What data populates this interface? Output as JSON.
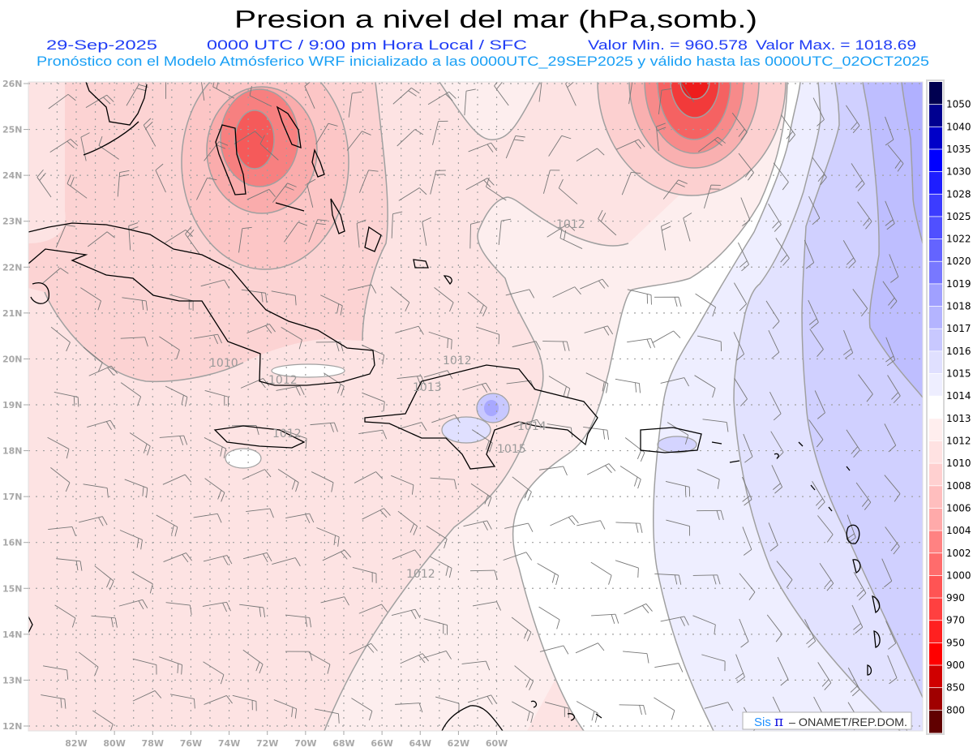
{
  "header": {
    "title": "Presion a nivel del mar (hPa,somb.)",
    "date": "29-Sep-2025",
    "time": "0000 UTC / 9:00 pm Hora Local / SFC",
    "min": "Valor Min. = 960.578",
    "max": "Valor Max. = 1018.69",
    "subtitle": "Pronóstico con el Modelo Atmósferico WRF inicializado a las 0000UTC_29SEP2025 y válido hasta las  0000UTC_02OCT2025"
  },
  "colors": {
    "title": "#000000",
    "line2": "#1f3cf5",
    "subtitle": "#1aa0f5",
    "grid": "#a0a0a0",
    "coast": "#000000"
  },
  "axes": {
    "lat_labels": [
      "26N",
      "25N",
      "24N",
      "23N",
      "22N",
      "21N",
      "20N",
      "19N",
      "18N",
      "17N",
      "16N",
      "15N",
      "14N",
      "13N",
      "12N"
    ],
    "lon_labels": [
      "82W",
      "80W",
      "78W",
      "76W",
      "74W",
      "72W",
      "70W",
      "68W",
      "66W",
      "64W",
      "62W",
      "60W"
    ]
  },
  "colorbar": {
    "labels": [
      "1050",
      "1040",
      "1035",
      "1030",
      "1028",
      "1025",
      "1022",
      "1020",
      "1019",
      "1018",
      "1017",
      "1016",
      "1015",
      "1014",
      "1013",
      "1012",
      "1010",
      "1008",
      "1006",
      "1004",
      "1002",
      "1000",
      "990",
      "970",
      "950",
      "900",
      "850",
      "800"
    ],
    "colors": [
      "#000050",
      "#000090",
      "#0000c8",
      "#0000ff",
      "#1e1eff",
      "#3c3cff",
      "#5050ff",
      "#6464ff",
      "#7878ff",
      "#a0a0ff",
      "#b4b4ff",
      "#c8c8ff",
      "#e0e0ff",
      "#eeeeff",
      "#ffffff",
      "#ffeeee",
      "#ffe2e2",
      "#ffd0d0",
      "#ffbebe",
      "#ffaaaa",
      "#ff8282",
      "#ff6c6c",
      "#ff5454",
      "#ff4040",
      "#ff2020",
      "#ff0000",
      "#d00000",
      "#a00000",
      "#600000"
    ]
  },
  "contour_labels": [
    "1012",
    "1010",
    "1012",
    "1012",
    "1013",
    "1012",
    "1014",
    "1015",
    "1012"
  ],
  "credit": {
    "logo_sis": "Sis",
    "logo_pi": "π",
    "text": "– ONAMET/REP.DOM."
  }
}
